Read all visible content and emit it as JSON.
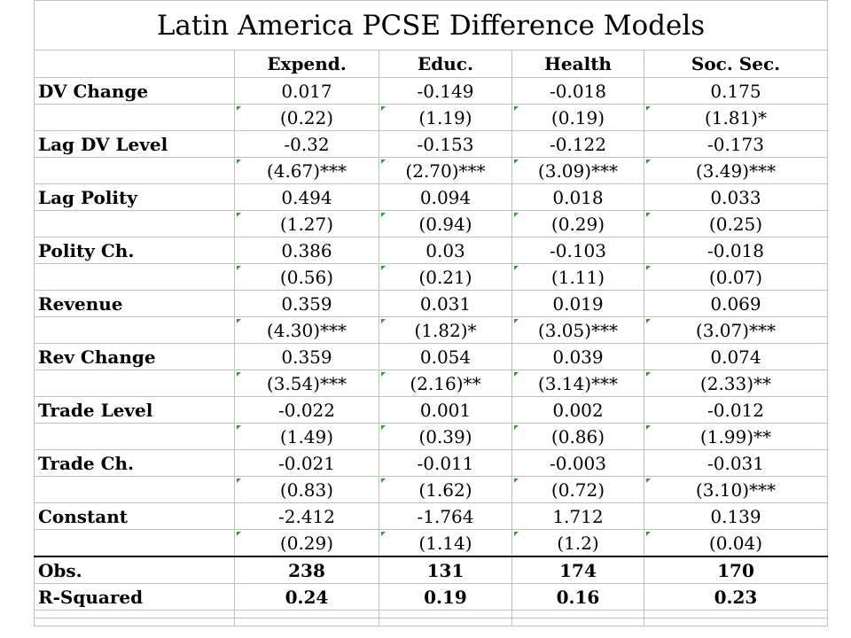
{
  "title": "Latin America PCSE Difference Models",
  "columns": [
    "Expend.",
    "Educ.",
    "Health",
    "Soc. Sec."
  ],
  "rows": [
    {
      "label": "DV Change",
      "coef": [
        "0.017",
        "-0.149",
        "-0.018",
        "0.175"
      ],
      "se": [
        "(0.22)",
        "(1.19)",
        "(0.19)",
        "(1.81)*"
      ]
    },
    {
      "label": "Lag DV Level",
      "coef": [
        "-0.32",
        "-0.153",
        "-0.122",
        "-0.173"
      ],
      "se": [
        "(4.67)***",
        "(2.70)***",
        "(3.09)***",
        "(3.49)***"
      ]
    },
    {
      "label": "Lag Polity",
      "coef": [
        "0.494",
        "0.094",
        "0.018",
        "0.033"
      ],
      "se": [
        "(1.27)",
        "(0.94)",
        "(0.29)",
        "(0.25)"
      ]
    },
    {
      "label": "Polity Ch.",
      "coef": [
        "0.386",
        "0.03",
        "-0.103",
        "-0.018"
      ],
      "se": [
        "(0.56)",
        "(0.21)",
        "(1.11)",
        "(0.07)"
      ]
    },
    {
      "label": "Revenue",
      "coef": [
        "0.359",
        "0.031",
        "0.019",
        "0.069"
      ],
      "se": [
        "(4.30)***",
        "(1.82)*",
        "(3.05)***",
        "(3.07)***"
      ]
    },
    {
      "label": "Rev Change",
      "coef": [
        "0.359",
        "0.054",
        "0.039",
        "0.074"
      ],
      "se": [
        "(3.54)***",
        "(2.16)**",
        "(3.14)***",
        "(2.33)**"
      ]
    },
    {
      "label": "Trade Level",
      "coef": [
        "-0.022",
        "0.001",
        "0.002",
        "-0.012"
      ],
      "se": [
        "(1.49)",
        "(0.39)",
        "(0.86)",
        "(1.99)**"
      ]
    },
    {
      "label": "Trade Ch.",
      "coef": [
        "-0.021",
        "-0.011",
        "-0.003",
        "-0.031"
      ],
      "se": [
        "(0.83)",
        "(1.62)",
        "(0.72)",
        "(3.10)***"
      ]
    },
    {
      "label": "Constant",
      "coef": [
        "-2.412",
        "-1.764",
        "1.712",
        "0.139"
      ],
      "se": [
        "(0.29)",
        "(1.14)",
        "(1.2)",
        "(0.04)"
      ]
    }
  ],
  "stats": [
    {
      "label": "Obs.",
      "values": [
        "238",
        "131",
        "174",
        "170"
      ]
    },
    {
      "label": "R-Squared",
      "values": [
        "0.24",
        "0.19",
        "0.16",
        "0.23"
      ]
    }
  ],
  "se_marker_color": "#3a9a3a"
}
